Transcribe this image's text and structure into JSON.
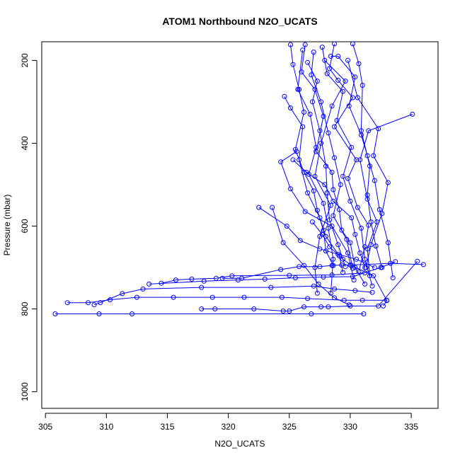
{
  "chart_data": {
    "type": "line",
    "title": "ATOM1 Northbound N2O_UCATS",
    "xlabel": "N2O_UCATS",
    "ylabel": "Pressure (mbar)",
    "xlim": [
      304.7,
      337.2
    ],
    "ylim": [
      1040,
      155
    ],
    "y_reversed": true,
    "xticks": [
      305,
      310,
      315,
      320,
      325,
      330,
      335
    ],
    "yticks": [
      200,
      400,
      600,
      800,
      1000
    ],
    "grid": false,
    "legend": "none",
    "series_color": "#0000ff",
    "marker": "open-circle",
    "series": [
      {
        "values": [
          [
            305.8,
            812
          ],
          [
            309.4,
            812
          ],
          [
            312.1,
            812
          ],
          [
            326.8,
            812
          ],
          [
            331.1,
            812
          ]
        ]
      },
      {
        "values": [
          [
            306.8,
            785
          ],
          [
            308.5,
            785
          ],
          [
            310.3,
            778
          ],
          [
            312.5,
            772
          ],
          [
            315.5,
            772
          ],
          [
            318.7,
            772
          ],
          [
            321.3,
            772
          ],
          [
            324.4,
            772
          ],
          [
            326.5,
            775
          ],
          [
            329.5,
            779
          ],
          [
            331.0,
            779
          ],
          [
            333.0,
            779
          ]
        ]
      },
      {
        "values": [
          [
            309.0,
            790
          ],
          [
            309.5,
            785
          ],
          [
            311.3,
            763
          ],
          [
            313.0,
            752
          ],
          [
            317.8,
            748
          ],
          [
            323.5,
            748
          ],
          [
            327.0,
            745
          ],
          [
            328.7,
            752
          ],
          [
            330.4,
            756
          ],
          [
            331.8,
            760
          ]
        ]
      },
      {
        "values": [
          [
            314.5,
            738
          ],
          [
            315.7,
            730
          ],
          [
            317.0,
            728
          ],
          [
            319.0,
            726
          ],
          [
            320.3,
            720
          ],
          [
            325.0,
            719
          ],
          [
            328.5,
            718
          ],
          [
            331.2,
            713
          ]
        ]
      },
      {
        "values": [
          [
            317.8,
            800
          ],
          [
            318.9,
            800
          ],
          [
            322.1,
            800
          ],
          [
            324.5,
            805
          ],
          [
            325.0,
            805
          ],
          [
            326.2,
            795
          ],
          [
            327.6,
            795
          ],
          [
            328.2,
            795
          ],
          [
            330.0,
            793
          ],
          [
            332.3,
            793
          ],
          [
            335.5,
            685
          ]
        ]
      },
      {
        "values": [
          [
            319.5,
            726
          ],
          [
            321.1,
            726
          ],
          [
            324.3,
            705
          ],
          [
            325.8,
            698
          ],
          [
            327.5,
            698
          ],
          [
            328.5,
            695
          ],
          [
            329.3,
            694
          ],
          [
            330.0,
            694
          ],
          [
            333.3,
            690
          ],
          [
            336.0,
            693
          ]
        ]
      },
      {
        "values": [
          [
            313.5,
            740
          ],
          [
            318.0,
            733
          ],
          [
            320.8,
            730
          ],
          [
            323.0,
            728
          ],
          [
            325.5,
            725
          ],
          [
            327.8,
            723
          ],
          [
            330.2,
            722
          ],
          [
            332.5,
            700
          ],
          [
            333.7,
            686
          ]
        ]
      },
      {
        "values": [
          [
            322.5,
            555
          ],
          [
            324.8,
            600
          ],
          [
            325.9,
            635
          ],
          [
            327.5,
            655
          ],
          [
            329.0,
            668
          ],
          [
            330.5,
            680
          ],
          [
            332.0,
            700
          ]
        ]
      },
      {
        "values": [
          [
            326.3,
            162
          ],
          [
            326.0,
            228
          ],
          [
            327.1,
            270
          ],
          [
            327.8,
            335
          ],
          [
            327.2,
            420
          ],
          [
            328.5,
            470
          ],
          [
            328.6,
            512
          ],
          [
            329.1,
            560
          ],
          [
            329.3,
            610
          ],
          [
            330.0,
            640
          ],
          [
            330.4,
            700
          ],
          [
            331.2,
            740
          ]
        ]
      },
      {
        "values": [
          [
            328.7,
            160
          ],
          [
            328.3,
            220
          ],
          [
            329.0,
            248
          ],
          [
            330.2,
            290
          ],
          [
            328.7,
            360
          ],
          [
            330.5,
            440
          ],
          [
            329.8,
            485
          ],
          [
            330.6,
            555
          ],
          [
            331.5,
            598
          ],
          [
            331.2,
            650
          ],
          [
            330.7,
            710
          ]
        ]
      },
      {
        "values": [
          [
            325.1,
            162
          ],
          [
            325.3,
            210
          ],
          [
            325.8,
            270
          ],
          [
            326.2,
            325
          ],
          [
            325.5,
            415
          ],
          [
            326.2,
            470
          ],
          [
            327.0,
            515
          ],
          [
            327.3,
            562
          ],
          [
            327.8,
            610
          ],
          [
            328.0,
            660
          ],
          [
            328.6,
            695
          ]
        ]
      },
      {
        "values": [
          [
            330.2,
            160
          ],
          [
            330.7,
            208
          ],
          [
            331.0,
            260
          ],
          [
            330.9,
            370
          ],
          [
            331.6,
            455
          ],
          [
            331.4,
            525
          ],
          [
            331.7,
            590
          ],
          [
            332.1,
            648
          ],
          [
            332.6,
            700
          ]
        ]
      },
      {
        "values": [
          [
            324.6,
            287
          ],
          [
            325.1,
            315
          ],
          [
            326.1,
            360
          ],
          [
            325.8,
            440
          ],
          [
            326.5,
            520
          ],
          [
            327.5,
            580
          ],
          [
            328.0,
            625
          ],
          [
            329.1,
            672
          ],
          [
            329.4,
            712
          ]
        ]
      },
      {
        "values": [
          [
            327.7,
            168
          ],
          [
            328.1,
            232
          ],
          [
            329.4,
            275
          ],
          [
            328.9,
            345
          ],
          [
            330.1,
            410
          ],
          [
            329.4,
            480
          ],
          [
            330.0,
            540
          ],
          [
            330.9,
            605
          ],
          [
            331.2,
            680
          ],
          [
            331.8,
            745
          ]
        ]
      },
      {
        "values": [
          [
            327.0,
            180
          ],
          [
            326.8,
            235
          ],
          [
            327.6,
            300
          ],
          [
            328.2,
            375
          ],
          [
            328.7,
            435
          ],
          [
            329.2,
            500
          ],
          [
            328.6,
            575
          ],
          [
            329.7,
            632
          ],
          [
            330.2,
            702
          ]
        ]
      },
      {
        "values": [
          [
            326.5,
            205
          ],
          [
            327.3,
            250
          ],
          [
            326.9,
            300
          ],
          [
            327.5,
            370
          ],
          [
            328.0,
            455
          ],
          [
            328.1,
            520
          ],
          [
            328.3,
            585
          ],
          [
            329.0,
            645
          ],
          [
            329.6,
            698
          ]
        ]
      },
      {
        "values": [
          [
            335.1,
            330
          ],
          [
            331.5,
            370
          ],
          [
            330.8,
            440
          ],
          [
            331.4,
            535
          ],
          [
            332.2,
            590
          ],
          [
            331.4,
            655
          ],
          [
            331.6,
            720
          ]
        ]
      },
      {
        "values": [
          [
            325.3,
            440
          ],
          [
            326.4,
            470
          ],
          [
            327.9,
            500
          ],
          [
            328.6,
            540
          ],
          [
            330.1,
            580
          ],
          [
            330.4,
            620
          ],
          [
            330.8,
            665
          ],
          [
            331.2,
            700
          ]
        ]
      },
      {
        "values": [
          [
            328.4,
            190
          ],
          [
            329.0,
            190
          ],
          [
            330.4,
            240
          ],
          [
            329.9,
            310
          ],
          [
            330.9,
            380
          ],
          [
            331.4,
            430
          ],
          [
            332.0,
            490
          ],
          [
            332.4,
            560
          ],
          [
            333.1,
            640
          ],
          [
            333.5,
            725
          ]
        ]
      },
      {
        "values": [
          [
            327.9,
            200
          ],
          [
            329.6,
            250
          ],
          [
            328.5,
            310
          ],
          [
            327.6,
            400
          ],
          [
            327.1,
            480
          ],
          [
            328.4,
            550
          ],
          [
            327.5,
            625
          ],
          [
            327.1,
            700
          ],
          [
            327.3,
            762
          ]
        ]
      },
      {
        "values": [
          [
            325.6,
            420
          ],
          [
            324.3,
            445
          ],
          [
            325.1,
            510
          ],
          [
            326.3,
            565
          ],
          [
            328.5,
            600
          ],
          [
            329.8,
            665
          ],
          [
            330.3,
            730
          ]
        ]
      },
      {
        "values": [
          [
            326.1,
            175
          ],
          [
            325.7,
            270
          ],
          [
            326.7,
            330
          ],
          [
            327.2,
            410
          ],
          [
            326.6,
            475
          ],
          [
            327.8,
            545
          ],
          [
            328.2,
            605
          ],
          [
            328.6,
            680
          ],
          [
            328.4,
            762
          ]
        ]
      },
      {
        "values": [
          [
            329.8,
            200
          ],
          [
            330.6,
            290
          ],
          [
            332.3,
            365
          ],
          [
            331.9,
            430
          ],
          [
            333.1,
            495
          ],
          [
            332.6,
            570
          ],
          [
            331.7,
            645
          ],
          [
            331.3,
            700
          ]
        ]
      },
      {
        "values": [
          [
            326.9,
            590
          ],
          [
            327.7,
            620
          ],
          [
            328.3,
            650
          ],
          [
            329.4,
            680
          ],
          [
            330.1,
            695
          ],
          [
            331.9,
            720
          ],
          [
            333.0,
            780
          ],
          [
            332.7,
            793
          ]
        ]
      },
      {
        "values": [
          [
            323.6,
            555
          ],
          [
            324.5,
            640
          ],
          [
            326.2,
            695
          ],
          [
            327.4,
            740
          ],
          [
            328.7,
            773
          ],
          [
            329.9,
            790
          ]
        ]
      }
    ]
  }
}
